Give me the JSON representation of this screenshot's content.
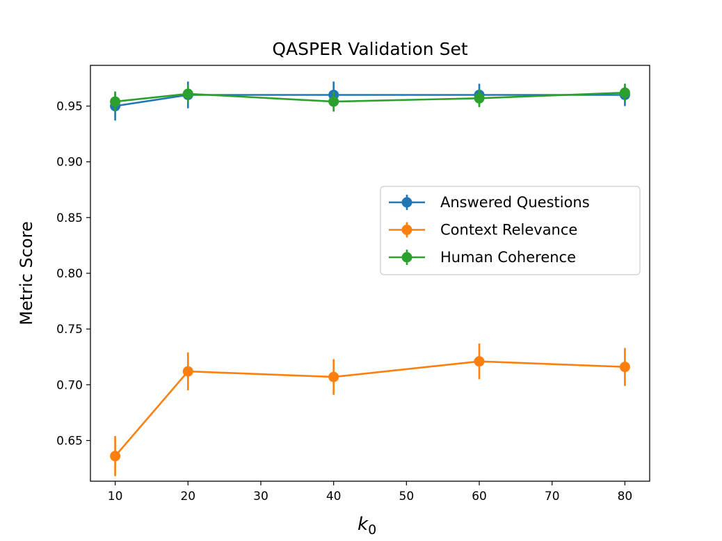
{
  "chart_data": {
    "type": "line",
    "title": "QASPER Validation Set",
    "xlabel": "k",
    "xlabel_subscript": "0",
    "ylabel": "Metric Score",
    "xlim": [
      6.6,
      83.4
    ],
    "ylim": [
      0.6135,
      0.9865
    ],
    "xticks": [
      10,
      20,
      30,
      40,
      50,
      60,
      70,
      80
    ],
    "yticks": [
      0.65,
      0.7,
      0.75,
      0.8,
      0.85,
      0.9,
      0.95
    ],
    "x": [
      10,
      20,
      40,
      60,
      80
    ],
    "grid": false,
    "legend_position": "center-right",
    "series": [
      {
        "name": "Answered Questions",
        "color": "#1f77b4",
        "values": [
          0.95,
          0.96,
          0.96,
          0.96,
          0.96
        ],
        "errors": [
          0.013,
          0.012,
          0.012,
          0.01,
          0.01
        ]
      },
      {
        "name": "Context Relevance",
        "color": "#ff7f0e",
        "values": [
          0.636,
          0.712,
          0.707,
          0.721,
          0.716
        ],
        "errors": [
          0.018,
          0.017,
          0.016,
          0.016,
          0.017
        ]
      },
      {
        "name": "Human Coherence",
        "color": "#2ca02c",
        "values": [
          0.954,
          0.961,
          0.954,
          0.957,
          0.962
        ],
        "errors": [
          0.009,
          0.008,
          0.009,
          0.008,
          0.008
        ]
      }
    ]
  }
}
